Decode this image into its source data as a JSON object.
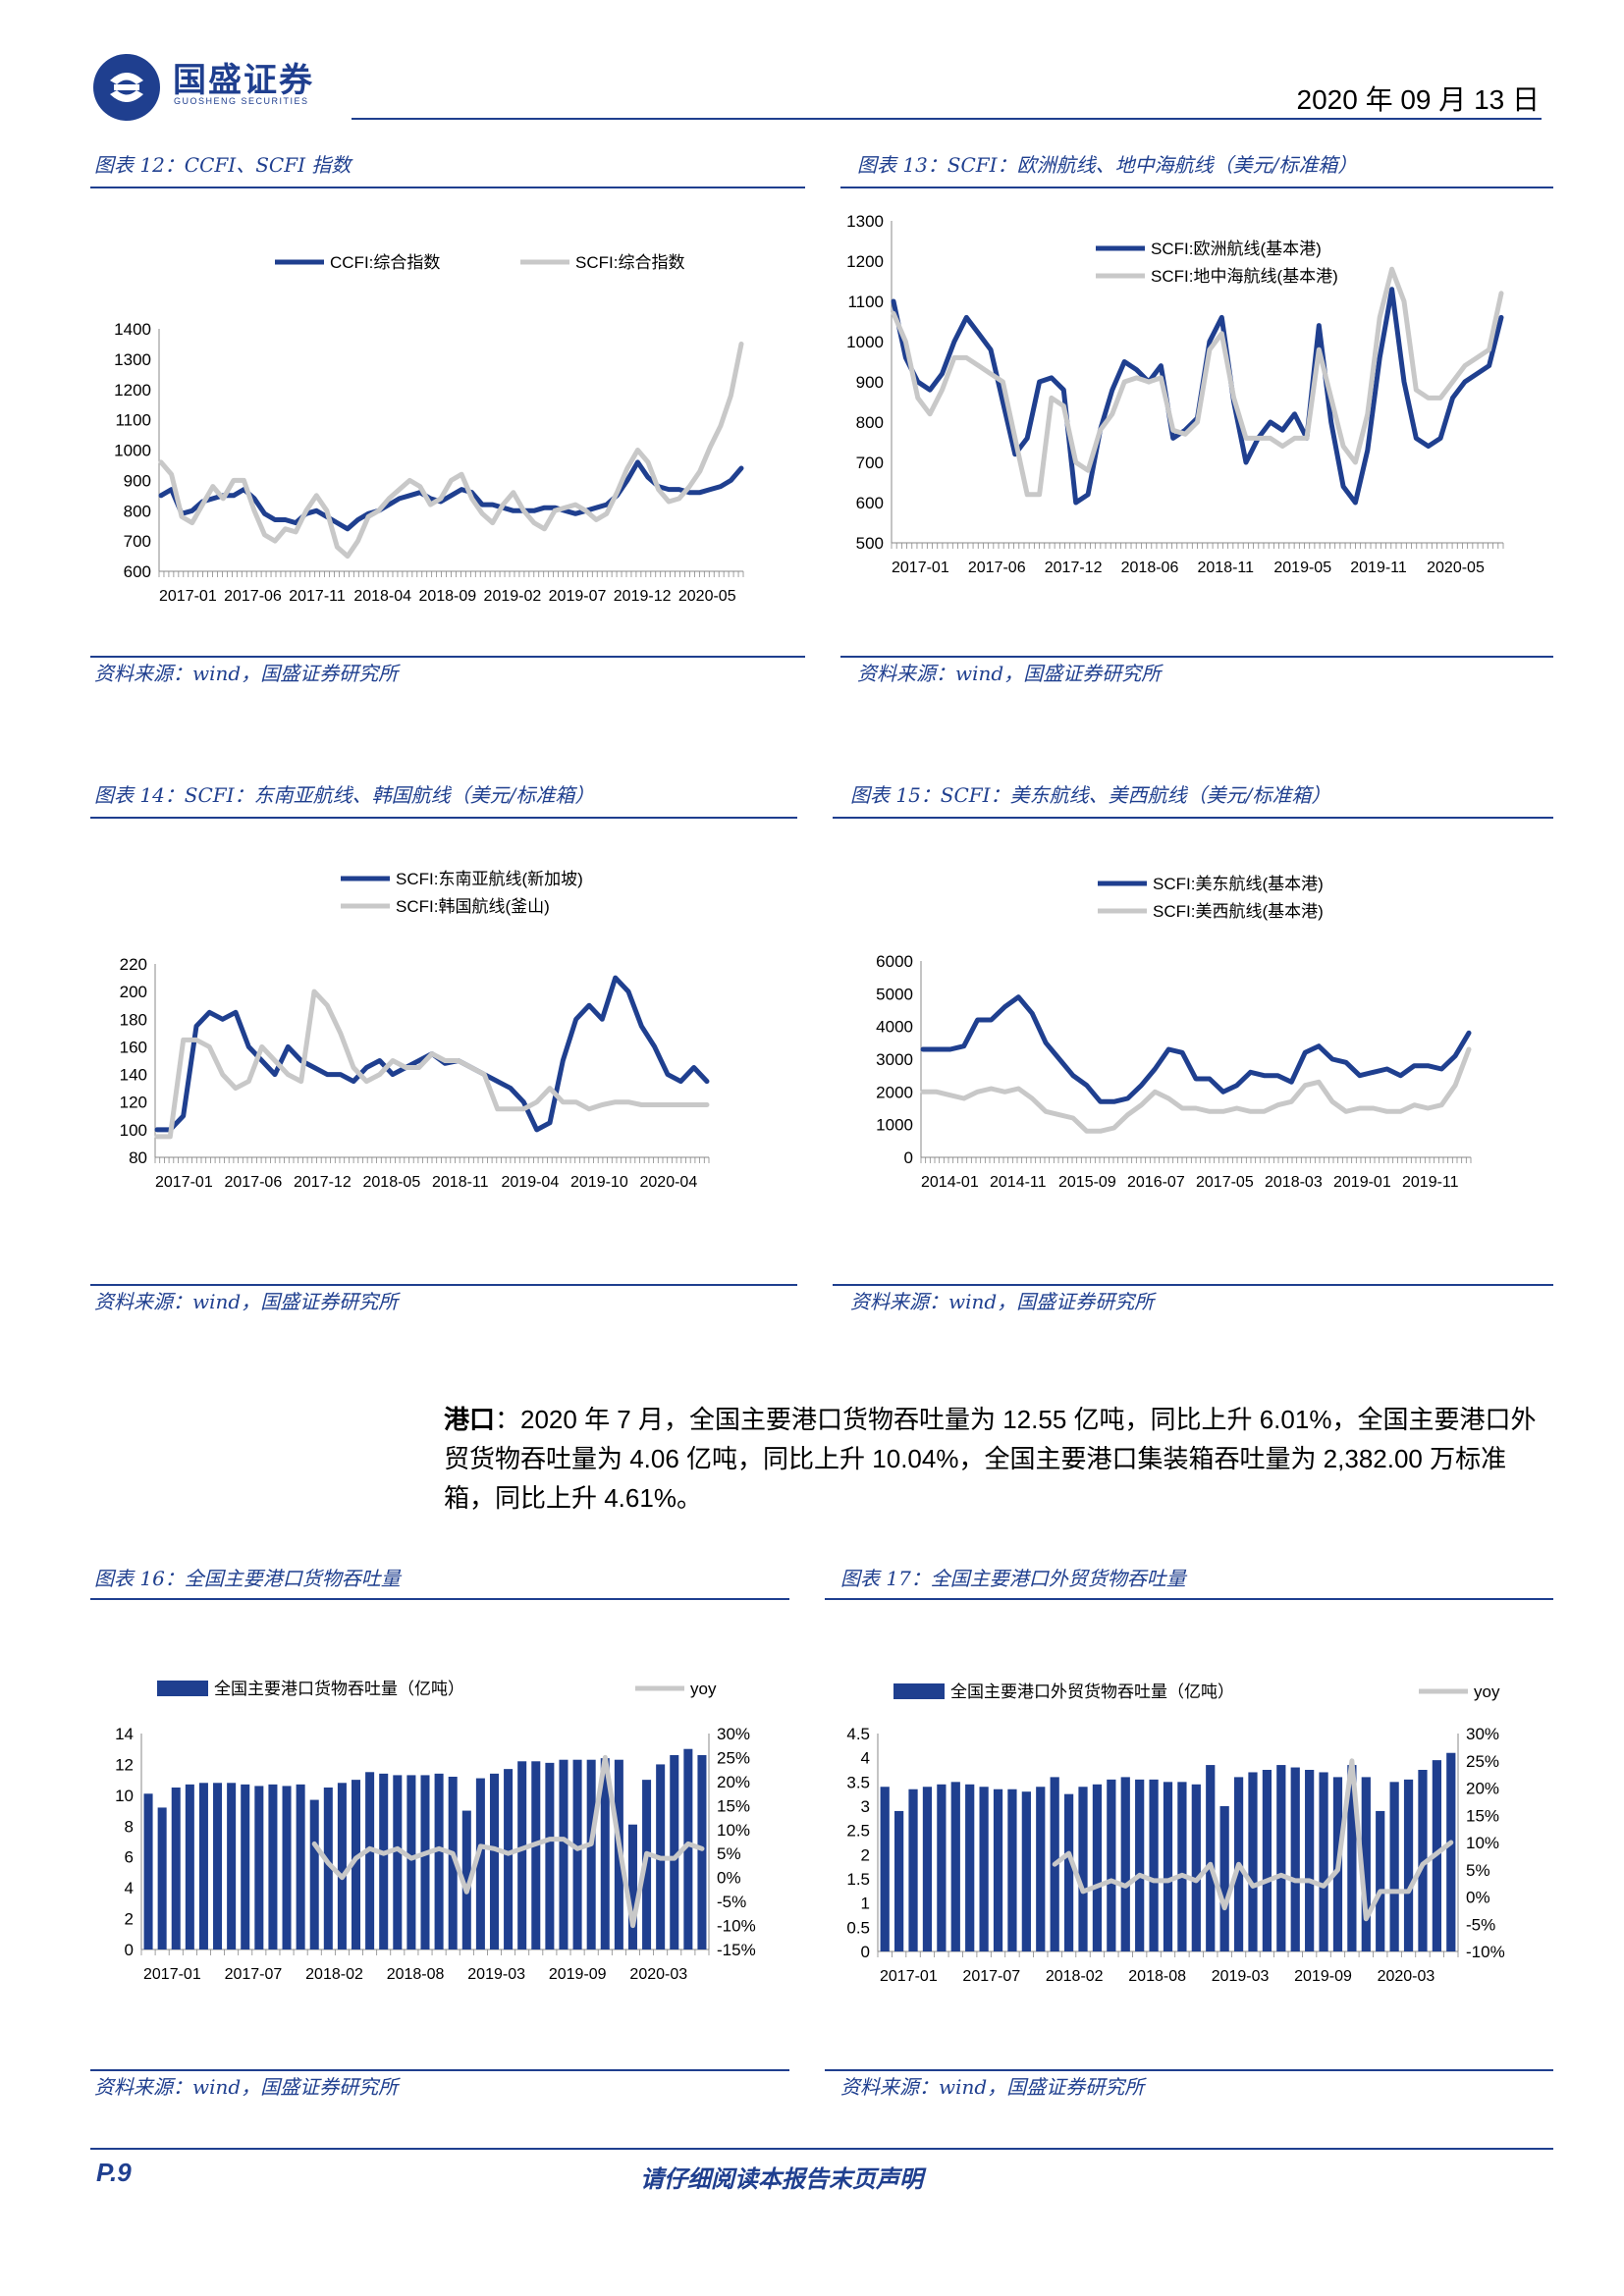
{
  "header": {
    "company": "国盛证券",
    "company_en": "GUOSHENG SECURITIES",
    "date": "2020 年 09 月 13 日"
  },
  "figures": [
    {
      "title": "图表 12：CCFI、SCFI 指数",
      "source": "资料来源：wind，国盛证券研究所",
      "chart_data": {
        "type": "line",
        "series": [
          {
            "name": "CCFI:综合指数",
            "color": "#1f3f8f",
            "values": [
              850,
              870,
              790,
              800,
              830,
              840,
              850,
              850,
              870,
              840,
              790,
              770,
              770,
              760,
              790,
              800,
              780,
              760,
              740,
              770,
              790,
              800,
              820,
              840,
              850,
              860,
              840,
              830,
              850,
              870,
              860,
              820,
              820,
              810,
              800,
              800,
              800,
              810,
              810,
              800,
              790,
              800,
              810,
              820,
              850,
              900,
              960,
              910,
              880,
              870,
              870,
              860,
              860,
              870,
              880,
              900,
              940
            ]
          },
          {
            "name": "SCFI:综合指数",
            "color": "#c8c8c8",
            "values": [
              960,
              920,
              780,
              760,
              820,
              880,
              840,
              900,
              900,
              800,
              720,
              700,
              740,
              730,
              800,
              850,
              800,
              680,
              650,
              700,
              780,
              800,
              840,
              870,
              900,
              880,
              820,
              840,
              900,
              920,
              840,
              790,
              760,
              820,
              860,
              800,
              760,
              740,
              800,
              810,
              820,
              800,
              770,
              790,
              860,
              940,
              1000,
              960,
              870,
              830,
              840,
              880,
              930,
              1010,
              1080,
              1180,
              1350
            ]
          }
        ],
        "x_tick_labels": [
          "2017-01",
          "2017-06",
          "2017-11",
          "2018-04",
          "2018-09",
          "2019-02",
          "2019-07",
          "2019-12",
          "2020-05"
        ],
        "y_tick_labels": [
          "600",
          "700",
          "800",
          "900",
          "1000",
          "1100",
          "1200",
          "1300",
          "1400"
        ],
        "ylim": [
          600,
          1400
        ]
      }
    },
    {
      "title": "图表 13：SCFI：欧洲航线、地中海航线（美元/标准箱）",
      "source": "资料来源：wind，国盛证券研究所",
      "chart_data": {
        "type": "line",
        "series": [
          {
            "name": "SCFI:欧洲航线(基本港)",
            "color": "#1f3f8f",
            "values": [
              1100,
              960,
              900,
              880,
              920,
              1000,
              1060,
              1020,
              980,
              850,
              720,
              760,
              900,
              910,
              880,
              600,
              620,
              780,
              880,
              950,
              930,
              900,
              940,
              760,
              780,
              810,
              1000,
              1060,
              850,
              700,
              760,
              800,
              780,
              820,
              760,
              1040,
              800,
              640,
              600,
              730,
              960,
              1130,
              900,
              760,
              740,
              760,
              860,
              900,
              920,
              940,
              1060
            ]
          },
          {
            "name": "SCFI:地中海航线(基本港)",
            "color": "#c8c8c8",
            "values": [
              1070,
              1000,
              860,
              820,
              880,
              960,
              960,
              940,
              920,
              900,
              760,
              620,
              620,
              860,
              840,
              700,
              680,
              780,
              820,
              900,
              910,
              900,
              910,
              780,
              770,
              800,
              980,
              1020,
              860,
              760,
              760,
              760,
              740,
              760,
              760,
              980,
              860,
              740,
              700,
              820,
              1060,
              1180,
              1100,
              880,
              860,
              860,
              900,
              940,
              960,
              980,
              1120
            ]
          }
        ],
        "x_tick_labels": [
          "2017-01",
          "2017-06",
          "2017-12",
          "2018-06",
          "2018-11",
          "2019-05",
          "2019-11",
          "2020-05"
        ],
        "y_tick_labels": [
          "500",
          "600",
          "700",
          "800",
          "900",
          "1000",
          "1100",
          "1200",
          "1300"
        ],
        "ylim": [
          500,
          1300
        ]
      }
    },
    {
      "title": "图表 14：SCFI：东南亚航线、韩国航线（美元/标准箱）",
      "source": "资料来源：wind，国盛证券研究所",
      "chart_data": {
        "type": "line",
        "series": [
          {
            "name": "SCFI:东南亚航线(新加坡)",
            "color": "#1f3f8f",
            "values": [
              100,
              100,
              110,
              175,
              185,
              180,
              185,
              160,
              150,
              140,
              160,
              150,
              145,
              140,
              140,
              135,
              145,
              150,
              140,
              145,
              150,
              155,
              148,
              150,
              145,
              140,
              135,
              130,
              120,
              100,
              105,
              150,
              180,
              190,
              180,
              210,
              200,
              175,
              160,
              140,
              135,
              145,
              135
            ]
          },
          {
            "name": "SCFI:韩国航线(釜山)",
            "color": "#c8c8c8",
            "values": [
              95,
              95,
              165,
              165,
              160,
              140,
              130,
              135,
              160,
              150,
              140,
              135,
              200,
              190,
              170,
              145,
              135,
              140,
              150,
              145,
              145,
              155,
              150,
              150,
              145,
              140,
              115,
              115,
              115,
              120,
              130,
              120,
              120,
              115,
              118,
              120,
              120,
              118,
              118,
              118,
              118,
              118,
              118
            ]
          }
        ],
        "x_tick_labels": [
          "2017-01",
          "2017-06",
          "2017-12",
          "2018-05",
          "2018-11",
          "2019-04",
          "2019-10",
          "2020-04"
        ],
        "y_tick_labels": [
          "80",
          "100",
          "120",
          "140",
          "160",
          "180",
          "200",
          "220"
        ],
        "ylim": [
          80,
          220
        ]
      }
    },
    {
      "title": "图表 15：SCFI：美东航线、美西航线（美元/标准箱）",
      "source": "资料来源：wind，国盛证券研究所",
      "chart_data": {
        "type": "line",
        "series": [
          {
            "name": "SCFI:美东航线(基本港)",
            "color": "#1f3f8f",
            "values": [
              3300,
              3300,
              3300,
              3400,
              4200,
              4200,
              4600,
              4900,
              4400,
              3500,
              3000,
              2500,
              2200,
              1700,
              1700,
              1800,
              2200,
              2700,
              3300,
              3200,
              2400,
              2400,
              2000,
              2200,
              2600,
              2500,
              2500,
              2300,
              3200,
              3400,
              3000,
              2900,
              2500,
              2600,
              2700,
              2500,
              2800,
              2800,
              2700,
              3100,
              3800
            ]
          },
          {
            "name": "SCFI:美西航线(基本港)",
            "color": "#c8c8c8",
            "values": [
              2000,
              2000,
              1900,
              1800,
              2000,
              2100,
              2000,
              2100,
              1800,
              1400,
              1300,
              1200,
              800,
              800,
              900,
              1300,
              1600,
              2000,
              1800,
              1500,
              1500,
              1400,
              1400,
              1500,
              1400,
              1400,
              1600,
              1700,
              2200,
              2300,
              1700,
              1400,
              1500,
              1500,
              1400,
              1400,
              1600,
              1500,
              1600,
              2200,
              3300
            ]
          }
        ],
        "x_tick_labels": [
          "2014-01",
          "2014-11",
          "2015-09",
          "2016-07",
          "2017-05",
          "2018-03",
          "2019-01",
          "2019-11"
        ],
        "y_tick_labels": [
          "0",
          "1000",
          "2000",
          "3000",
          "4000",
          "5000",
          "6000"
        ],
        "ylim": [
          0,
          6000
        ]
      }
    },
    {
      "title": "图表 16：全国主要港口货物吞吐量",
      "source": "资料来源：wind，国盛证券研究所",
      "chart_data": {
        "type": "bar",
        "series": [
          {
            "name": "全国主要港口货物吞吐量（亿吨）",
            "color": "#1f3f8f",
            "values": [
              10.1,
              9.2,
              10.5,
              10.7,
              10.8,
              10.8,
              10.8,
              10.7,
              10.6,
              10.7,
              10.6,
              10.7,
              9.7,
              10.5,
              10.8,
              11.0,
              11.5,
              11.4,
              11.3,
              11.3,
              11.3,
              11.4,
              11.2,
              9.0,
              11.1,
              11.4,
              11.7,
              12.2,
              12.2,
              12.1,
              12.3,
              12.3,
              12.3,
              12.4,
              12.3,
              8.1,
              11.0,
              12.0,
              12.6,
              13.0,
              12.6
            ]
          },
          {
            "name": "yoy",
            "color": "#c8c8c8",
            "values": [
              null,
              null,
              null,
              null,
              null,
              null,
              null,
              null,
              null,
              null,
              null,
              null,
              7.0,
              3.0,
              0,
              4.0,
              6.0,
              5.0,
              6.0,
              4.0,
              5.0,
              6.0,
              5.0,
              -3.0,
              6.5,
              6.0,
              5.0,
              6.0,
              7.0,
              8.0,
              8.0,
              6.0,
              7.0,
              25.0,
              7.0,
              -10.0,
              5.0,
              4.0,
              4.0,
              7.0,
              6.0
            ]
          }
        ],
        "x_tick_labels": [
          "2017-01",
          "2017-07",
          "2018-02",
          "2018-08",
          "2019-03",
          "2019-09",
          "2020-03"
        ],
        "y_tick_labels": [
          "0",
          "2",
          "4",
          "6",
          "8",
          "10",
          "12",
          "14"
        ],
        "y2_tick_labels": [
          "-15%",
          "-10%",
          "-5%",
          "0%",
          "5%",
          "10%",
          "15%",
          "20%",
          "25%",
          "30%"
        ],
        "ylim": [
          0,
          14
        ],
        "y2lim": [
          -15,
          30
        ]
      }
    },
    {
      "title": "图表 17：全国主要港口外贸货物吞吐量",
      "source": "资料来源：wind，国盛证券研究所",
      "chart_data": {
        "type": "bar",
        "series": [
          {
            "name": "全国主要港口外贸货物吞吐量（亿吨）",
            "color": "#1f3f8f",
            "values": [
              3.4,
              2.9,
              3.35,
              3.4,
              3.45,
              3.5,
              3.45,
              3.4,
              3.35,
              3.35,
              3.3,
              3.4,
              3.6,
              3.25,
              3.4,
              3.45,
              3.55,
              3.6,
              3.55,
              3.55,
              3.5,
              3.5,
              3.45,
              3.85,
              3.0,
              3.6,
              3.7,
              3.75,
              3.85,
              3.8,
              3.75,
              3.7,
              3.6,
              3.85,
              3.6,
              2.9,
              3.5,
              3.55,
              3.75,
              3.95,
              4.1
            ]
          },
          {
            "name": "yoy",
            "color": "#c8c8c8",
            "values": [
              null,
              null,
              null,
              null,
              null,
              null,
              null,
              null,
              null,
              null,
              null,
              null,
              6.0,
              8.0,
              1.0,
              2.0,
              3.0,
              2.0,
              4.0,
              3.0,
              3.0,
              4.0,
              3.0,
              6.0,
              -2.0,
              6.0,
              2.0,
              3.0,
              4.0,
              3.0,
              3.0,
              2.0,
              5.0,
              25.0,
              -4.0,
              1.0,
              1.0,
              1.0,
              6.0,
              8.0,
              10.0
            ]
          }
        ],
        "x_tick_labels": [
          "2017-01",
          "2017-07",
          "2018-02",
          "2018-08",
          "2019-03",
          "2019-09",
          "2020-03"
        ],
        "y_tick_labels": [
          "0",
          "0.5",
          "1",
          "1.5",
          "2",
          "2.5",
          "3",
          "3.5",
          "4",
          "4.5"
        ],
        "y2_tick_labels": [
          "-10%",
          "-5%",
          "0%",
          "5%",
          "10%",
          "15%",
          "20%",
          "25%",
          "30%"
        ],
        "ylim": [
          0,
          4.5
        ],
        "y2lim": [
          -10,
          30
        ]
      }
    }
  ],
  "body": {
    "heading": "港口",
    "text": "：2020 年 7 月，全国主要港口货物吞吐量为 12.55 亿吨，同比上升 6.01%，全国主要港口外贸货物吞吐量为 4.06 亿吨，同比上升 10.04%，全国主要港口集装箱吞吐量为 2,382.00 万标准箱，同比上升 4.61%。"
  },
  "footer": {
    "page": "P.9",
    "notice": "请仔细阅读本报告末页声明"
  }
}
